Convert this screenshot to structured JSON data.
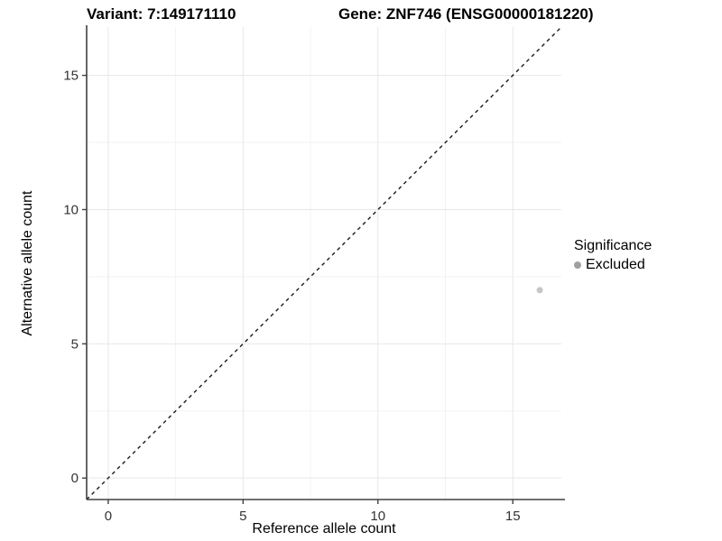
{
  "chart_data": {
    "type": "scatter",
    "titles": [
      "Variant: 7:149171110",
      "Gene: ZNF746 (ENSG00000181220)"
    ],
    "xlabel": "Reference allele count",
    "ylabel": "Alternative allele count",
    "xlim": [
      -0.8,
      16.8
    ],
    "ylim": [
      -0.8,
      16.8
    ],
    "x_ticks": [
      0,
      5,
      10,
      15
    ],
    "y_ticks": [
      0,
      5,
      10,
      15
    ],
    "x_minor_ticks": [
      2.5,
      7.5,
      12.5
    ],
    "y_minor_ticks": [
      2.5,
      7.5,
      12.5
    ],
    "grid": true,
    "reference_line": {
      "slope": 1,
      "intercept": 0,
      "style": "dashed",
      "color": "#1a1a1a"
    },
    "series": [
      {
        "name": "Excluded",
        "color": "#c6c6c6",
        "points": [
          {
            "x": 16,
            "y": 7
          }
        ]
      }
    ],
    "legend": {
      "title": "Significance",
      "position": "right",
      "entries": [
        {
          "label": "Excluded",
          "color": "#a0a0a0"
        }
      ]
    },
    "colors": {
      "background": "#ffffff",
      "grid_major": "#e7e7e7",
      "grid_minor": "#f3f3f3",
      "axis_line": "#404040",
      "tick_label": "#333333"
    }
  }
}
